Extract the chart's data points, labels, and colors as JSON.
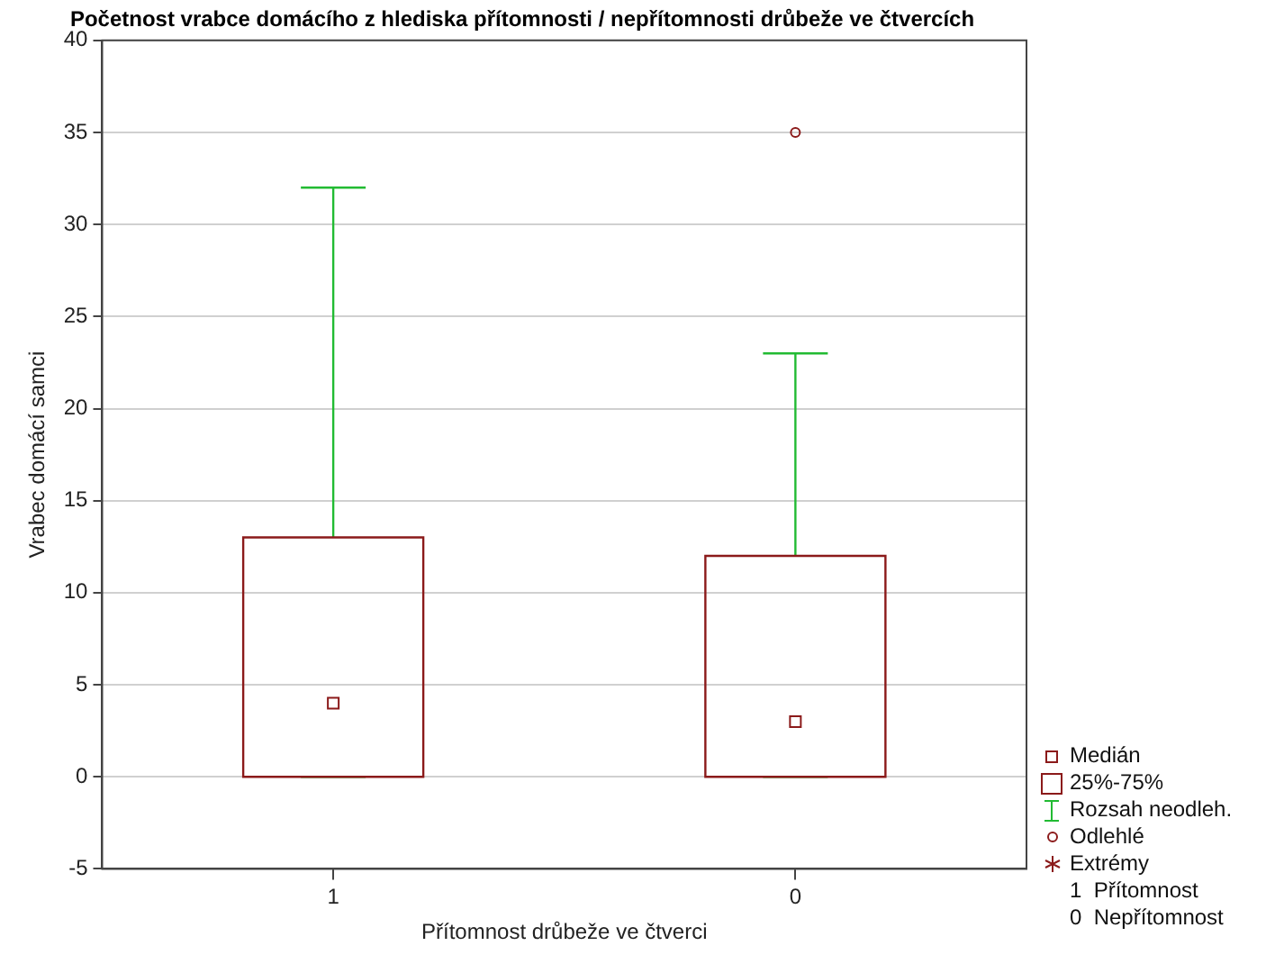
{
  "chart_data": {
    "type": "box",
    "title": "Početnost vrabce domácího z hlediska přítomnosti / nepřítomnosti drůbeže ve čtvercích",
    "xlabel": "Přítomnost drůbeže ve čtverci",
    "ylabel": "Vrabec domácí samci",
    "categories": [
      "1",
      "0"
    ],
    "series": [
      {
        "color": "#8b1a1a",
        "boxes": [
          {
            "low": 0,
            "q1": 0,
            "median": 4,
            "q3": 13,
            "high": 32
          },
          {
            "low": 0,
            "q1": 0,
            "median": 3,
            "q3": 12,
            "high": 23,
            "outliers": [
              35
            ]
          }
        ]
      }
    ],
    "ylim": [
      -5,
      40
    ],
    "yticks": [
      -5,
      0,
      5,
      10,
      15,
      20,
      25,
      30,
      35,
      40
    ],
    "grid": "y",
    "annotations": [
      "Medián",
      "25%-75%",
      "Rozsah neodleh.",
      "Odlehlé",
      "Extrémy",
      "1  Přítomnost",
      "0  Nepřítomnost"
    ]
  }
}
